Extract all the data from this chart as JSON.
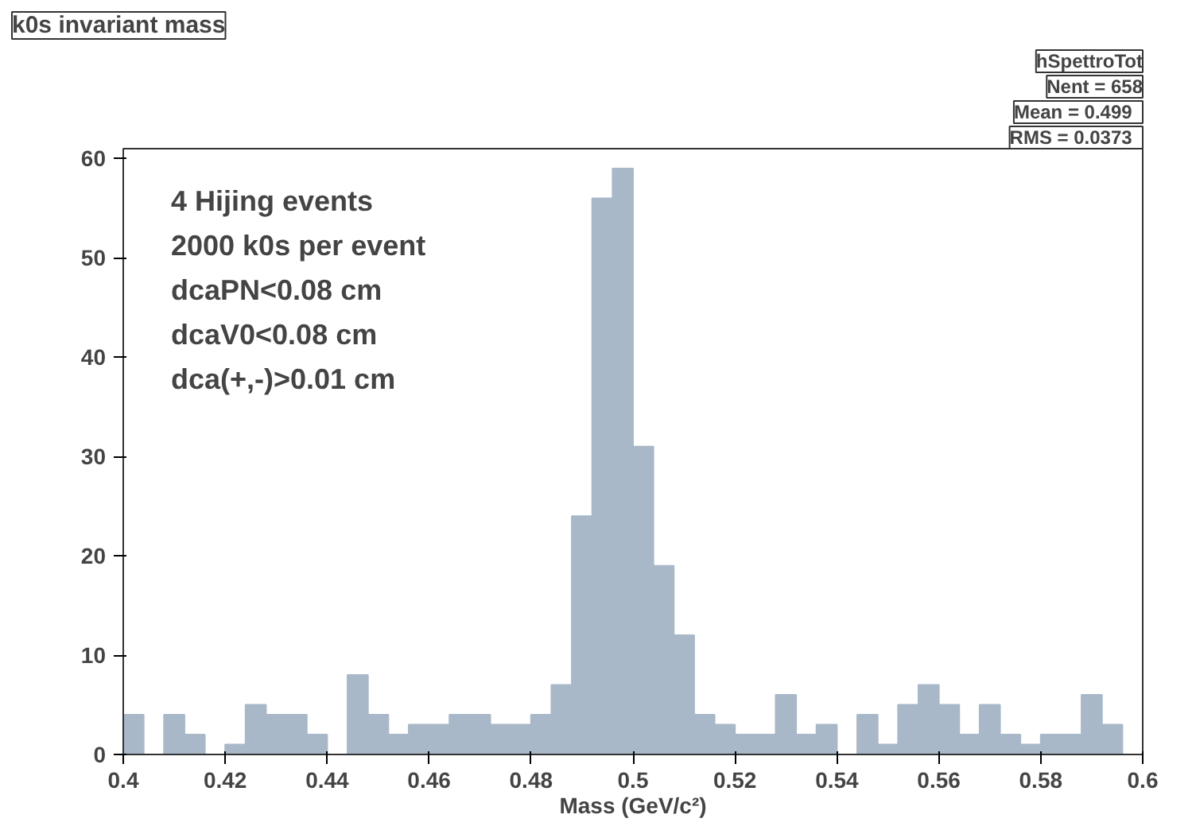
{
  "chart_data": {
    "type": "histogram",
    "title": "k0s invariant mass",
    "xlabel": "Mass (GeV/c²)",
    "bins": [
      0.4,
      0.404,
      0.408,
      0.412,
      0.416,
      0.42,
      0.424,
      0.428,
      0.432,
      0.436,
      0.44,
      0.444,
      0.448,
      0.452,
      0.456,
      0.46,
      0.464,
      0.468,
      0.472,
      0.476,
      0.48,
      0.484,
      0.488,
      0.492,
      0.496,
      0.5,
      0.504,
      0.508,
      0.512,
      0.516,
      0.52,
      0.524,
      0.528,
      0.532,
      0.536,
      0.54,
      0.544,
      0.548,
      0.552,
      0.556,
      0.56,
      0.564,
      0.568,
      0.572,
      0.576,
      0.58,
      0.584,
      0.588,
      0.592,
      0.596,
      0.6
    ],
    "values": [
      4,
      0,
      4,
      2,
      0,
      1,
      5,
      4,
      4,
      2,
      0,
      8,
      4,
      2,
      3,
      3,
      4,
      4,
      3,
      3,
      4,
      7,
      24,
      56,
      59,
      31,
      19,
      12,
      4,
      3,
      2,
      2,
      6,
      2,
      3,
      0,
      4,
      1,
      5,
      7,
      5,
      2,
      5,
      2,
      1,
      2,
      2,
      6,
      3,
      0
    ],
    "color": "#a9b8c9",
    "xlim": [
      0.4,
      0.6
    ],
    "ylim": [
      0,
      61
    ],
    "xticks": [
      0.4,
      0.42,
      0.44,
      0.46,
      0.48,
      0.5,
      0.52,
      0.54,
      0.56,
      0.58,
      0.6
    ],
    "yticks": [
      0,
      10,
      20,
      30,
      40,
      50,
      60
    ],
    "grid": false,
    "annotations": [
      "4 Hijing events",
      "2000 k0s per event",
      "dcaPN<0.08 cm",
      "dcaV0<0.08 cm",
      "dca(+,-)>0.01 cm",
      "hSpettroTot",
      "Nent = 658",
      "Mean  =  0.499",
      "RMS   = 0.0373"
    ]
  }
}
